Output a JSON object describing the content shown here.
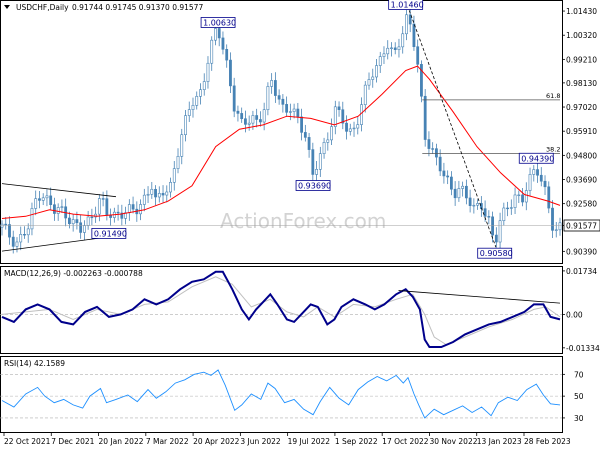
{
  "chart_data": [
    {
      "type": "candlestick",
      "title": "USDCHF,Daily",
      "ohlc_readout": "0.91744 0.91745 0.91370 0.91577",
      "y_ticks": [
        "1.01430",
        "1.00320",
        "0.99210",
        "0.98130",
        "0.97020",
        "0.95910",
        "0.94800",
        "0.93690",
        "0.92580",
        "0.91577",
        "0.90390"
      ],
      "ylim": [
        0.899,
        1.018
      ],
      "x_ticks": [
        "22 Oct 2021",
        "7 Dec 2021",
        "20 Jan 2022",
        "7 Mar 2022",
        "20 Apr 2022",
        "3 Jun 2022",
        "19 Jul 2022",
        "1 Sep 2022",
        "17 Oct 2022",
        "30 Nov 2022",
        "13 Jan 2023",
        "28 Feb 2023"
      ],
      "current_price": 0.91577,
      "price_path": [
        [
          0.0,
          0.915
        ],
        [
          1.2,
          0.908
        ],
        [
          2.2,
          0.914
        ],
        [
          3.0,
          0.931
        ],
        [
          3.5,
          0.93
        ],
        [
          4.4,
          0.922
        ],
        [
          5.2,
          0.923
        ],
        [
          6.0,
          0.917
        ],
        [
          6.6,
          0.913
        ],
        [
          7.4,
          0.919
        ],
        [
          8.3,
          0.929
        ],
        [
          8.8,
          0.92
        ],
        [
          9.6,
          0.921
        ],
        [
          10.5,
          0.923
        ],
        [
          11.2,
          0.921
        ],
        [
          12.0,
          0.929
        ],
        [
          12.6,
          0.935
        ],
        [
          13.0,
          0.925
        ],
        [
          13.6,
          0.931
        ],
        [
          14.2,
          0.935
        ],
        [
          15.0,
          0.954
        ],
        [
          16.0,
          0.973
        ],
        [
          16.8,
          0.978
        ],
        [
          17.4,
          0.992
        ],
        [
          18.0,
          1.005
        ],
        [
          18.2,
          1.0063
        ],
        [
          18.8,
          0.995
        ],
        [
          19.6,
          0.968
        ],
        [
          20.2,
          0.962
        ],
        [
          21.0,
          0.967
        ],
        [
          21.6,
          0.962
        ],
        [
          22.2,
          0.97
        ],
        [
          22.6,
          0.984
        ],
        [
          23.2,
          0.977
        ],
        [
          23.8,
          0.967
        ],
        [
          24.4,
          0.969
        ],
        [
          25.0,
          0.964
        ],
        [
          25.6,
          0.958
        ],
        [
          26.2,
          0.9369
        ],
        [
          26.8,
          0.948
        ],
        [
          27.4,
          0.956
        ],
        [
          28.0,
          0.97
        ],
        [
          28.6,
          0.964
        ],
        [
          29.2,
          0.958
        ],
        [
          29.8,
          0.962
        ],
        [
          30.4,
          0.974
        ],
        [
          31.0,
          0.983
        ],
        [
          31.8,
          0.992
        ],
        [
          32.4,
          1.0
        ],
        [
          33.0,
          0.992
        ],
        [
          33.6,
          1.002
        ],
        [
          34.2,
          1.0146
        ],
        [
          34.7,
          1.0
        ],
        [
          35.1,
          0.985
        ],
        [
          35.6,
          0.956
        ],
        [
          36.2,
          0.952
        ],
        [
          36.8,
          0.944
        ],
        [
          37.4,
          0.936
        ],
        [
          38.0,
          0.93
        ],
        [
          38.6,
          0.935
        ],
        [
          39.2,
          0.928
        ],
        [
          39.8,
          0.922
        ],
        [
          40.4,
          0.926
        ],
        [
          41.0,
          0.919
        ],
        [
          41.5,
          0.9058
        ],
        [
          42.0,
          0.918
        ],
        [
          42.6,
          0.925
        ],
        [
          43.2,
          0.93
        ],
        [
          43.8,
          0.926
        ],
        [
          44.4,
          0.936
        ],
        [
          45.0,
          0.9439
        ],
        [
          45.6,
          0.935
        ],
        [
          46.0,
          0.924
        ],
        [
          46.5,
          0.911
        ],
        [
          47.0,
          0.91577
        ]
      ],
      "moving_average_path": [
        [
          0.0,
          0.919
        ],
        [
          2.0,
          0.92
        ],
        [
          4.0,
          0.923
        ],
        [
          6.0,
          0.921
        ],
        [
          8.0,
          0.92
        ],
        [
          10.0,
          0.921
        ],
        [
          12.0,
          0.923
        ],
        [
          14.0,
          0.927
        ],
        [
          16.0,
          0.934
        ],
        [
          18.0,
          0.952
        ],
        [
          20.0,
          0.96
        ],
        [
          22.0,
          0.962
        ],
        [
          24.0,
          0.966
        ],
        [
          26.0,
          0.965
        ],
        [
          28.0,
          0.962
        ],
        [
          30.0,
          0.966
        ],
        [
          32.0,
          0.976
        ],
        [
          34.0,
          0.987
        ],
        [
          35.0,
          0.989
        ],
        [
          36.0,
          0.983
        ],
        [
          38.0,
          0.968
        ],
        [
          40.0,
          0.952
        ],
        [
          42.0,
          0.94
        ],
        [
          44.0,
          0.93
        ],
        [
          46.0,
          0.927
        ],
        [
          47.0,
          0.925
        ]
      ],
      "ma_color": "#ff0000",
      "candle_color": "#4682b4",
      "annotations": [
        "1.00630",
        "1.01460",
        "0.93690",
        "0.91490",
        "0.90580",
        "0.94390"
      ],
      "annotation_points": [
        [
          18.2,
          1.0063
        ],
        [
          34.0,
          1.0146
        ],
        [
          26.2,
          0.9369
        ],
        [
          7.4,
          0.9149
        ],
        [
          41.5,
          0.9058
        ],
        [
          45.0,
          0.9439
        ]
      ],
      "fibonacci": [
        {
          "label": "61.8",
          "value": 0.9735
        },
        {
          "label": "38.2",
          "value": 0.9488
        }
      ],
      "trendlines": [
        {
          "style": "solid",
          "from": [
            0.0,
            0.935
          ],
          "to": [
            9.6,
            0.929
          ]
        },
        {
          "style": "solid",
          "from": [
            0.0,
            0.904
          ],
          "to": [
            9.6,
            0.911
          ]
        },
        {
          "style": "dashed",
          "from": [
            34.3,
            1.0146
          ],
          "to": [
            41.6,
            0.9058
          ]
        }
      ],
      "watermark": "ActionForex.com"
    },
    {
      "type": "line",
      "title": "MACD(12,26,9) -0.002263 -0.000788",
      "y_ticks": [
        "0.01734",
        "0.00",
        "-0.01334"
      ],
      "ylim": [
        -0.015,
        0.0185
      ],
      "series": [
        {
          "color": "#00008b",
          "values": [
            [
              0,
              -0.001
            ],
            [
              1,
              -0.003
            ],
            [
              2,
              0.002
            ],
            [
              3,
              0.004
            ],
            [
              4,
              0.002
            ],
            [
              5,
              -0.003
            ],
            [
              6,
              -0.004
            ],
            [
              7,
              0.001
            ],
            [
              8,
              0.003
            ],
            [
              9,
              -0.001
            ],
            [
              10,
              0.0
            ],
            [
              11,
              0.002
            ],
            [
              12,
              0.006
            ],
            [
              13,
              0.004
            ],
            [
              14,
              0.006
            ],
            [
              15,
              0.01
            ],
            [
              16,
              0.013
            ],
            [
              17,
              0.014
            ],
            [
              18,
              0.017
            ],
            [
              18.6,
              0.017
            ],
            [
              19.4,
              0.01
            ],
            [
              20.2,
              0.002
            ],
            [
              20.8,
              -0.002
            ],
            [
              21.4,
              0.002
            ],
            [
              22.0,
              0.005
            ],
            [
              22.6,
              0.008
            ],
            [
              23.2,
              0.004
            ],
            [
              24.0,
              -0.002
            ],
            [
              24.6,
              -0.003
            ],
            [
              25.4,
              0.001
            ],
            [
              26.0,
              0.004
            ],
            [
              26.6,
              0.003
            ],
            [
              27.4,
              -0.004
            ],
            [
              28.0,
              -0.002
            ],
            [
              28.6,
              0.003
            ],
            [
              29.6,
              0.006
            ],
            [
              30.6,
              0.004
            ],
            [
              31.4,
              0.002
            ],
            [
              32.2,
              0.004
            ],
            [
              33.2,
              0.008
            ],
            [
              34.0,
              0.01
            ],
            [
              34.6,
              0.007
            ],
            [
              35.2,
              0.002
            ],
            [
              35.6,
              -0.01
            ],
            [
              36.0,
              -0.013
            ],
            [
              37.0,
              -0.013
            ],
            [
              38.0,
              -0.011
            ],
            [
              39.0,
              -0.008
            ],
            [
              40.0,
              -0.006
            ],
            [
              41.0,
              -0.004
            ],
            [
              42.0,
              -0.003
            ],
            [
              43.0,
              -0.001
            ],
            [
              44.0,
              0.001
            ],
            [
              44.8,
              0.004
            ],
            [
              45.6,
              0.004
            ],
            [
              46.2,
              -0.001
            ],
            [
              47.0,
              -0.002
            ]
          ]
        },
        {
          "color": "#c0c0c0",
          "values": [
            [
              0,
              0.0
            ],
            [
              2,
              0.001
            ],
            [
              4,
              0.002
            ],
            [
              6,
              -0.002
            ],
            [
              8,
              0.002
            ],
            [
              10,
              0.0
            ],
            [
              12,
              0.004
            ],
            [
              14,
              0.005
            ],
            [
              16,
              0.011
            ],
            [
              18,
              0.015
            ],
            [
              19.4,
              0.012
            ],
            [
              21.0,
              0.003
            ],
            [
              22.6,
              0.006
            ],
            [
              24.0,
              0.001
            ],
            [
              25.4,
              -0.001
            ],
            [
              26.6,
              0.003
            ],
            [
              28.0,
              -0.001
            ],
            [
              29.6,
              0.004
            ],
            [
              31.4,
              0.003
            ],
            [
              33.2,
              0.006
            ],
            [
              34.6,
              0.008
            ],
            [
              35.6,
              0.0
            ],
            [
              36.4,
              -0.009
            ],
            [
              37.4,
              -0.012
            ],
            [
              39.0,
              -0.009
            ],
            [
              41.0,
              -0.005
            ],
            [
              43.0,
              -0.002
            ],
            [
              44.8,
              0.002
            ],
            [
              45.8,
              0.003
            ],
            [
              47.0,
              -0.001
            ]
          ]
        }
      ],
      "trendline": {
        "from": [
          33.4,
          0.0095
        ],
        "to": [
          47.0,
          0.0045
        ]
      }
    },
    {
      "type": "line",
      "title": "RSI(14) 42.1589",
      "y_ticks": [
        "70",
        "50",
        "30"
      ],
      "ylim": [
        18,
        85
      ],
      "series": [
        {
          "color": "#1e90ff",
          "values": [
            [
              0,
              46
            ],
            [
              1,
              40
            ],
            [
              2,
              52
            ],
            [
              3,
              58
            ],
            [
              3.6,
              50
            ],
            [
              4.4,
              44
            ],
            [
              5.2,
              47
            ],
            [
              6.0,
              42
            ],
            [
              6.8,
              39
            ],
            [
              7.4,
              50
            ],
            [
              8.3,
              57
            ],
            [
              8.8,
              44
            ],
            [
              9.6,
              47
            ],
            [
              10.6,
              51
            ],
            [
              11.4,
              45
            ],
            [
              12.3,
              56
            ],
            [
              13.0,
              48
            ],
            [
              13.8,
              54
            ],
            [
              14.6,
              62
            ],
            [
              15.4,
              65
            ],
            [
              16.2,
              70
            ],
            [
              17.0,
              72
            ],
            [
              17.6,
              69
            ],
            [
              18.2,
              74
            ],
            [
              18.8,
              60
            ],
            [
              19.6,
              37
            ],
            [
              20.2,
              42
            ],
            [
              21.0,
              52
            ],
            [
              21.8,
              47
            ],
            [
              22.4,
              62
            ],
            [
              23.0,
              57
            ],
            [
              23.8,
              44
            ],
            [
              24.6,
              47
            ],
            [
              25.4,
              38
            ],
            [
              26.2,
              33
            ],
            [
              26.8,
              45
            ],
            [
              27.6,
              58
            ],
            [
              28.4,
              48
            ],
            [
              29.2,
              42
            ],
            [
              30.0,
              56
            ],
            [
              30.8,
              63
            ],
            [
              31.6,
              68
            ],
            [
              32.4,
              64
            ],
            [
              33.2,
              69
            ],
            [
              33.8,
              62
            ],
            [
              34.2,
              67
            ],
            [
              34.7,
              52
            ],
            [
              35.1,
              42
            ],
            [
              35.6,
              30
            ],
            [
              36.4,
              38
            ],
            [
              37.2,
              33
            ],
            [
              38.0,
              37
            ],
            [
              38.8,
              41
            ],
            [
              39.6,
              35
            ],
            [
              40.4,
              40
            ],
            [
              41.2,
              32
            ],
            [
              41.8,
              44
            ],
            [
              42.6,
              49
            ],
            [
              43.4,
              46
            ],
            [
              44.2,
              56
            ],
            [
              45.0,
              61
            ],
            [
              45.6,
              51
            ],
            [
              46.2,
              43
            ],
            [
              47.0,
              42
            ]
          ]
        }
      ]
    }
  ]
}
